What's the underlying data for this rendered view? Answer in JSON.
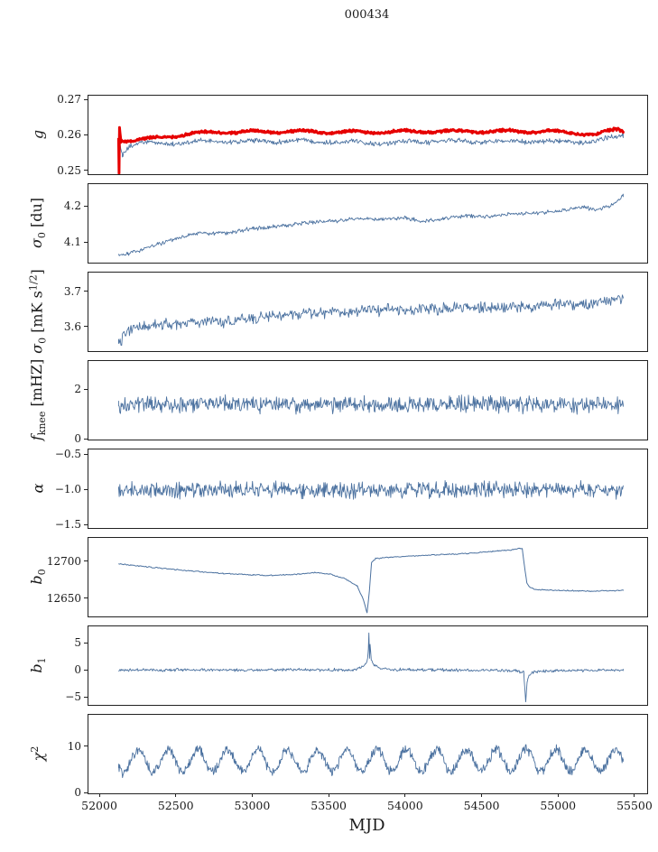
{
  "title": "000434",
  "chart_data": {
    "type": "line",
    "title": "000434",
    "colors": {
      "blue": "#4c72a0",
      "red": "#e60000",
      "axis": "#222222"
    },
    "x_axis": {
      "label": "MJD",
      "range": [
        51923,
        55577
      ],
      "ticks": [
        52000,
        52500,
        53000,
        53500,
        54000,
        54500,
        55000,
        55500
      ]
    },
    "panels": [
      {
        "id": "g",
        "ylabel_parts": [
          {
            "text": "g",
            "style": "italic"
          }
        ],
        "ylim": [
          0.2492,
          0.2713
        ],
        "yticks": [
          {
            "v": 0.25,
            "label": "0.25"
          },
          {
            "v": 0.26,
            "label": "0.26"
          },
          {
            "v": 0.27,
            "label": "0.27"
          }
        ],
        "series": [
          {
            "name": "g-raw",
            "color": "#4c72a0",
            "width": 0.9,
            "noise": 0.00055,
            "points": 700,
            "sine": {
              "period": 330,
              "amplitude": 0.0003,
              "phase": 52250
            },
            "anchors": [
              [
                52120,
                0.26
              ],
              [
                52145,
                0.2546
              ],
              [
                52190,
                0.2572
              ],
              [
                52260,
                0.258
              ],
              [
                52400,
                0.2578
              ],
              [
                52600,
                0.2582
              ],
              [
                52800,
                0.2585
              ],
              [
                53000,
                0.2584
              ],
              [
                53300,
                0.2586
              ],
              [
                53600,
                0.2583
              ],
              [
                53900,
                0.258
              ],
              [
                54200,
                0.2585
              ],
              [
                54500,
                0.2584
              ],
              [
                54800,
                0.2585
              ],
              [
                55000,
                0.2582
              ],
              [
                55200,
                0.2583
              ],
              [
                55320,
                0.2592
              ],
              [
                55420,
                0.2604
              ]
            ]
          },
          {
            "name": "g-fit",
            "color": "#e60000",
            "width": 3,
            "noise": 0.00028,
            "points": 700,
            "sine": {
              "period": 330,
              "amplitude": 0.00035,
              "phase": 52250
            },
            "anchors": [
              [
                52120,
                0.2595
              ],
              [
                52123,
                0.25
              ],
              [
                52126,
                0.2625
              ],
              [
                52135,
                0.2588
              ],
              [
                52200,
                0.2588
              ],
              [
                52300,
                0.259
              ],
              [
                52450,
                0.2598
              ],
              [
                52600,
                0.2606
              ],
              [
                52750,
                0.261
              ],
              [
                53000,
                0.2611
              ],
              [
                53250,
                0.2612
              ],
              [
                53500,
                0.2611
              ],
              [
                53750,
                0.261
              ],
              [
                54000,
                0.2612
              ],
              [
                54250,
                0.2613
              ],
              [
                54500,
                0.2612
              ],
              [
                54750,
                0.2613
              ],
              [
                55000,
                0.2611
              ],
              [
                55150,
                0.2607
              ],
              [
                55250,
                0.2603
              ],
              [
                55320,
                0.2612
              ],
              [
                55380,
                0.2619
              ],
              [
                55420,
                0.2613
              ]
            ]
          }
        ]
      },
      {
        "id": "sigma0-du",
        "ylabel_parts": [
          {
            "text": "σ",
            "style": "italic"
          },
          {
            "text": "0",
            "style": "sub"
          },
          {
            "text": " [du]",
            "style": "normal"
          }
        ],
        "ylim": [
          4.045,
          4.2625
        ],
        "yticks": [
          {
            "v": 4.1,
            "label": "4.1"
          },
          {
            "v": 4.2,
            "label": "4.2"
          }
        ],
        "series": [
          {
            "name": "sigma0-du",
            "color": "#4c72a0",
            "width": 0.9,
            "noise": 0.0045,
            "points": 650,
            "anchors": [
              [
                52120,
                4.066
              ],
              [
                52180,
                4.068
              ],
              [
                52300,
                4.085
              ],
              [
                52450,
                4.105
              ],
              [
                52550,
                4.118
              ],
              [
                52650,
                4.128
              ],
              [
                52750,
                4.125
              ],
              [
                52900,
                4.132
              ],
              [
                53000,
                4.14
              ],
              [
                53100,
                4.142
              ],
              [
                53250,
                4.15
              ],
              [
                53400,
                4.158
              ],
              [
                53550,
                4.16
              ],
              [
                53700,
                4.168
              ],
              [
                53850,
                4.165
              ],
              [
                54000,
                4.17
              ],
              [
                54100,
                4.158
              ],
              [
                54250,
                4.168
              ],
              [
                54400,
                4.175
              ],
              [
                54550,
                4.172
              ],
              [
                54700,
                4.18
              ],
              [
                54850,
                4.183
              ],
              [
                55000,
                4.188
              ],
              [
                55150,
                4.198
              ],
              [
                55250,
                4.192
              ],
              [
                55350,
                4.205
              ],
              [
                55420,
                4.232
              ]
            ]
          }
        ]
      },
      {
        "id": "sigma0-mk",
        "ylabel_parts": [
          {
            "text": "σ",
            "style": "italic"
          },
          {
            "text": "0",
            "style": "sub"
          },
          {
            "text": " [mK s",
            "style": "normal"
          },
          {
            "text": "1/2",
            "style": "sup"
          },
          {
            "text": "]",
            "style": "normal"
          }
        ],
        "ylim": [
          3.533,
          3.756
        ],
        "yticks": [
          {
            "v": 3.6,
            "label": "3.6"
          },
          {
            "v": 3.7,
            "label": "3.7"
          }
        ],
        "series": [
          {
            "name": "sigma0-mk",
            "color": "#4c72a0",
            "width": 0.9,
            "noise": 0.013,
            "points": 650,
            "anchors": [
              [
                52120,
                3.557
              ],
              [
                52200,
                3.595
              ],
              [
                52350,
                3.608
              ],
              [
                52500,
                3.612
              ],
              [
                52650,
                3.618
              ],
              [
                52800,
                3.615
              ],
              [
                53000,
                3.628
              ],
              [
                53200,
                3.635
              ],
              [
                53400,
                3.64
              ],
              [
                53600,
                3.645
              ],
              [
                53800,
                3.65
              ],
              [
                54000,
                3.648
              ],
              [
                54200,
                3.652
              ],
              [
                54400,
                3.658
              ],
              [
                54600,
                3.655
              ],
              [
                54800,
                3.66
              ],
              [
                55000,
                3.665
              ],
              [
                55200,
                3.668
              ],
              [
                55420,
                3.682
              ]
            ]
          }
        ]
      },
      {
        "id": "fknee",
        "ylabel_parts": [
          {
            "text": "f",
            "style": "italic"
          },
          {
            "text": "knee",
            "style": "sub"
          },
          {
            "text": " [mHZ]",
            "style": "normal"
          }
        ],
        "ylim": [
          0,
          3.19
        ],
        "yticks": [
          {
            "v": 0,
            "label": "0"
          },
          {
            "v": 2,
            "label": "2"
          }
        ],
        "series": [
          {
            "name": "fknee",
            "color": "#4c72a0",
            "width": 0.9,
            "noise": 0.27,
            "points": 800,
            "anchors": [
              [
                52120,
                1.42
              ],
              [
                55420,
                1.42
              ]
            ]
          }
        ]
      },
      {
        "id": "alpha",
        "ylabel_parts": [
          {
            "text": "α",
            "style": "italic"
          }
        ],
        "ylim": [
          -1.538,
          -0.423
        ],
        "yticks": [
          {
            "v": -1.5,
            "label": "−1.5"
          },
          {
            "v": -1.0,
            "label": "−1.0"
          },
          {
            "v": -0.5,
            "label": "−0.5"
          }
        ],
        "series": [
          {
            "name": "alpha",
            "color": "#4c72a0",
            "width": 0.9,
            "noise": 0.095,
            "points": 800,
            "anchors": [
              [
                52120,
                -1.0
              ],
              [
                55420,
                -1.0
              ]
            ]
          }
        ]
      },
      {
        "id": "b0",
        "ylabel_parts": [
          {
            "text": "b",
            "style": "italic"
          },
          {
            "text": "0",
            "style": "sub"
          }
        ],
        "ylim": [
          12626.8,
          12732.9
        ],
        "yticks": [
          {
            "v": 12650,
            "label": "12650"
          },
          {
            "v": 12700,
            "label": "12700"
          }
        ],
        "series": [
          {
            "name": "b0",
            "color": "#4c72a0",
            "width": 1,
            "noise": 0.6,
            "points": 500,
            "anchors": [
              [
                52120,
                12698
              ],
              [
                52200,
                12696
              ],
              [
                52400,
                12692
              ],
              [
                52600,
                12688
              ],
              [
                52800,
                12685
              ],
              [
                53000,
                12683
              ],
              [
                53100,
                12682
              ],
              [
                53200,
                12683
              ],
              [
                53300,
                12684
              ],
              [
                53400,
                12686
              ],
              [
                53500,
                12684
              ],
              [
                53600,
                12678
              ],
              [
                53680,
                12668
              ],
              [
                53720,
                12650
              ],
              [
                53745,
                12632
              ],
              [
                53760,
                12660
              ],
              [
                53775,
                12700
              ],
              [
                53800,
                12705
              ],
              [
                53900,
                12707
              ],
              [
                54000,
                12708
              ],
              [
                54200,
                12710
              ],
              [
                54400,
                12712
              ],
              [
                54600,
                12715
              ],
              [
                54700,
                12717
              ],
              [
                54745,
                12719
              ],
              [
                54760,
                12718
              ],
              [
                54775,
                12695
              ],
              [
                54790,
                12672
              ],
              [
                54810,
                12666
              ],
              [
                54850,
                12663
              ],
              [
                55000,
                12662
              ],
              [
                55200,
                12661
              ],
              [
                55420,
                12662
              ]
            ]
          }
        ]
      },
      {
        "id": "b1",
        "ylabel_parts": [
          {
            "text": "b",
            "style": "italic"
          },
          {
            "text": "1",
            "style": "sub"
          }
        ],
        "ylim": [
          -6.33,
          8.17
        ],
        "yticks": [
          {
            "v": -5,
            "label": "−5"
          },
          {
            "v": 0,
            "label": "0"
          },
          {
            "v": 5,
            "label": "5"
          }
        ],
        "series": [
          {
            "name": "b1",
            "color": "#4c72a0",
            "width": 0.9,
            "noise": 0.22,
            "points": 700,
            "anchors": [
              [
                52120,
                0.1
              ],
              [
                53650,
                0.15
              ],
              [
                53700,
                0.4
              ],
              [
                53740,
                1.2
              ],
              [
                53752,
                3.0
              ],
              [
                53757,
                7.2
              ],
              [
                53761,
                2.2
              ],
              [
                53765,
                5.0
              ],
              [
                53772,
                2.0
              ],
              [
                53790,
                1.0
              ],
              [
                53830,
                0.5
              ],
              [
                53900,
                0.2
              ],
              [
                54300,
                0.1
              ],
              [
                54700,
                0.0
              ],
              [
                54770,
                -0.3
              ],
              [
                54783,
                -5.9
              ],
              [
                54792,
                -2.0
              ],
              [
                54805,
                -0.8
              ],
              [
                54830,
                -0.3
              ],
              [
                54900,
                -0.1
              ],
              [
                55420,
                0.1
              ]
            ]
          }
        ]
      },
      {
        "id": "chi2",
        "ylabel_parts": [
          {
            "text": "χ",
            "style": "italic"
          },
          {
            "text": "2",
            "style": "sup"
          }
        ],
        "ylim": [
          0,
          17.0
        ],
        "yticks": [
          {
            "v": 0,
            "label": "0"
          },
          {
            "v": 10,
            "label": "10"
          }
        ],
        "series": [
          {
            "name": "chi2",
            "color": "#4c72a0",
            "width": 0.9,
            "noise": 0.85,
            "points": 900,
            "sine": {
              "period": 195,
              "amplitude": 2.4,
              "phase": 52200
            },
            "anchors": [
              [
                52120,
                7.0
              ],
              [
                55420,
                7.2
              ]
            ]
          }
        ]
      }
    ]
  }
}
